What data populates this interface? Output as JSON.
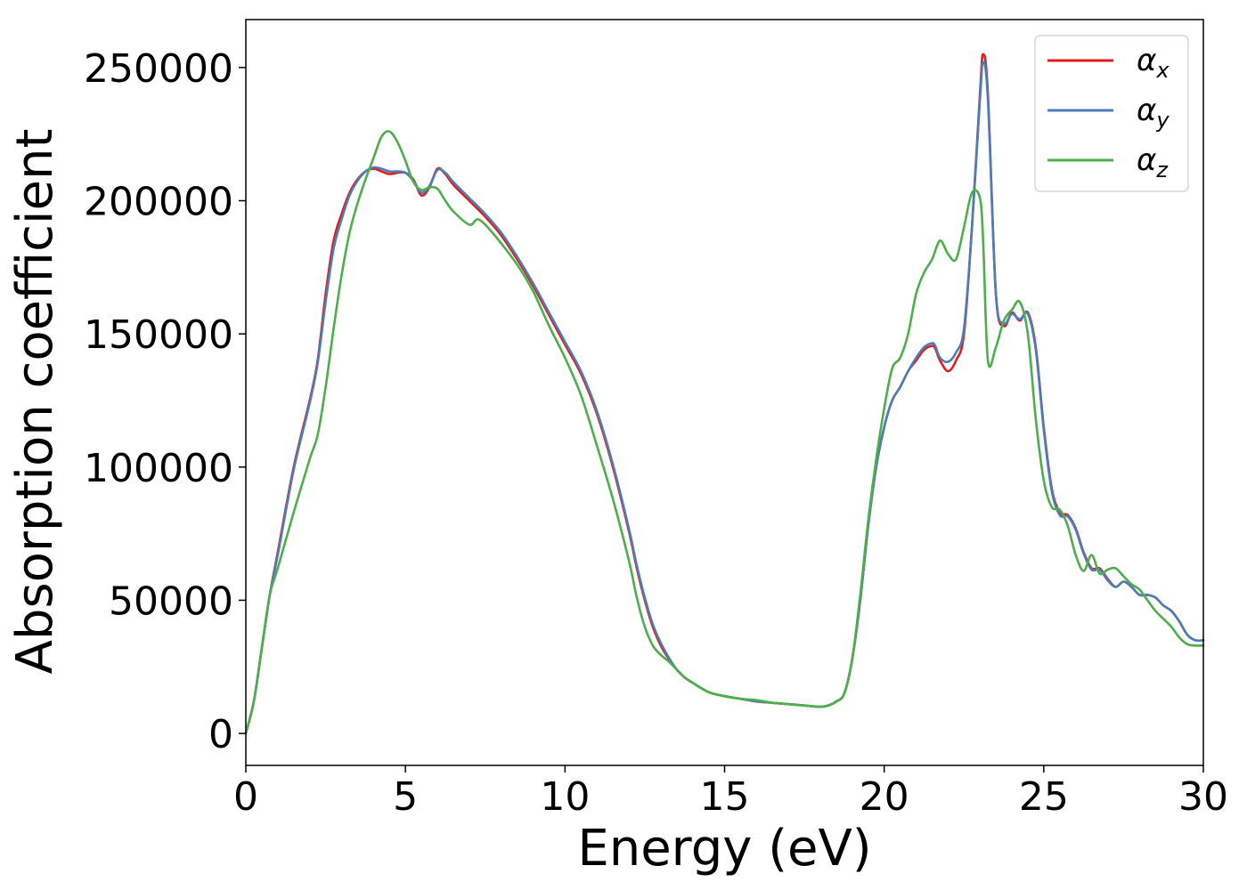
{
  "chart_data": {
    "type": "line",
    "title": "",
    "xlabel": "Energy (eV)",
    "ylabel": "Absorption coefficient",
    "xlim": [
      0,
      30
    ],
    "ylim": [
      -12000,
      268000
    ],
    "xticks": [
      0,
      5,
      10,
      15,
      20,
      25,
      30
    ],
    "yticks": [
      0,
      50000,
      100000,
      150000,
      200000,
      250000
    ],
    "grid": false,
    "legend_position": "top-right",
    "series": [
      {
        "name": "α",
        "subscript": "x",
        "color": "#e41a1c",
        "x": [
          0,
          0.25,
          0.5,
          0.75,
          1.0,
          1.5,
          2.0,
          2.25,
          2.5,
          2.75,
          3.0,
          3.25,
          3.5,
          3.75,
          4.0,
          4.25,
          4.5,
          4.75,
          5.0,
          5.25,
          5.5,
          5.75,
          6.0,
          6.25,
          6.5,
          7.0,
          7.5,
          8.0,
          8.5,
          9.0,
          9.5,
          10.0,
          10.5,
          11.0,
          11.5,
          12.0,
          12.25,
          12.5,
          12.75,
          13.0,
          13.25,
          13.5,
          13.75,
          14.0,
          14.5,
          15.0,
          15.5,
          16.0,
          16.5,
          17.0,
          17.5,
          18.0,
          18.25,
          18.5,
          18.75,
          19.0,
          19.25,
          19.5,
          19.75,
          20.0,
          20.25,
          20.5,
          20.75,
          21.0,
          21.25,
          21.5,
          21.6,
          21.75,
          22.0,
          22.25,
          22.5,
          22.75,
          23.0,
          23.1,
          23.25,
          23.5,
          23.75,
          24.0,
          24.25,
          24.5,
          24.75,
          25.0,
          25.25,
          25.5,
          25.75,
          26.0,
          26.25,
          26.5,
          26.75,
          27.0,
          27.25,
          27.5,
          27.75,
          28.0,
          28.25,
          28.5,
          28.75,
          29.0,
          29.25,
          29.5,
          29.75,
          30.0
        ],
        "y": [
          0,
          12000,
          32000,
          52000,
          68000,
          100000,
          125000,
          140000,
          165000,
          185000,
          195000,
          203000,
          208000,
          211000,
          212000,
          211000,
          210000,
          210500,
          210500,
          208000,
          202000,
          205000,
          212000,
          210000,
          206000,
          200000,
          194000,
          187000,
          178000,
          168000,
          157000,
          146000,
          135000,
          120000,
          100000,
          76000,
          62000,
          50000,
          40000,
          33000,
          28000,
          24000,
          21000,
          19000,
          15500,
          14000,
          13000,
          12000,
          11500,
          11000,
          10500,
          10000,
          10500,
          12000,
          15000,
          28000,
          50000,
          78000,
          100000,
          115000,
          125000,
          130000,
          136000,
          140000,
          144000,
          145500,
          144500,
          140000,
          136000,
          140000,
          150000,
          190000,
          240000,
          255000,
          240000,
          165000,
          153000,
          158000,
          155000,
          158000,
          145000,
          115000,
          92000,
          83000,
          82000,
          77000,
          68000,
          62000,
          62000,
          58000,
          55000,
          57000,
          55000,
          52000,
          52000,
          51000,
          48000,
          46000,
          42000,
          37000,
          35000,
          35000
        ]
      },
      {
        "name": "α",
        "subscript": "y",
        "color": "#4a7eb8",
        "x": [
          0,
          0.25,
          0.5,
          0.75,
          1.0,
          1.5,
          2.0,
          2.25,
          2.5,
          2.75,
          3.0,
          3.25,
          3.5,
          3.75,
          4.0,
          4.25,
          4.5,
          4.75,
          5.0,
          5.25,
          5.5,
          5.75,
          6.0,
          6.25,
          6.5,
          7.0,
          7.5,
          8.0,
          8.5,
          9.0,
          9.5,
          10.0,
          10.5,
          11.0,
          11.5,
          12.0,
          12.25,
          12.5,
          12.75,
          13.0,
          13.25,
          13.5,
          13.75,
          14.0,
          14.5,
          15.0,
          15.5,
          16.0,
          16.5,
          17.0,
          17.5,
          18.0,
          18.25,
          18.5,
          18.75,
          19.0,
          19.25,
          19.5,
          19.75,
          20.0,
          20.25,
          20.5,
          20.75,
          21.0,
          21.25,
          21.5,
          21.6,
          21.75,
          22.0,
          22.25,
          22.5,
          22.75,
          23.0,
          23.1,
          23.25,
          23.5,
          23.75,
          24.0,
          24.25,
          24.5,
          24.75,
          25.0,
          25.25,
          25.5,
          25.75,
          26.0,
          26.25,
          26.5,
          26.75,
          27.0,
          27.25,
          27.5,
          27.75,
          28.0,
          28.25,
          28.5,
          28.75,
          29.0,
          29.25,
          29.5,
          29.75,
          30.0
        ],
        "y": [
          0,
          12000,
          32000,
          52000,
          67000,
          99000,
          124000,
          139000,
          162000,
          182000,
          193000,
          202000,
          207500,
          211000,
          212500,
          212000,
          211000,
          211000,
          210500,
          207500,
          203000,
          205500,
          211500,
          210500,
          207000,
          201000,
          195000,
          188000,
          179000,
          169000,
          158000,
          147000,
          136000,
          121000,
          101000,
          77000,
          63000,
          51000,
          41000,
          34000,
          28500,
          24000,
          21000,
          19000,
          15500,
          14000,
          13000,
          12000,
          11500,
          11000,
          10500,
          10000,
          10500,
          12000,
          15000,
          28000,
          50000,
          78000,
          100000,
          115000,
          125000,
          130000,
          136000,
          141000,
          145000,
          146500,
          145500,
          141000,
          139500,
          143000,
          152000,
          190000,
          238000,
          252000,
          238000,
          165000,
          154000,
          157500,
          155500,
          157500,
          144000,
          114000,
          91000,
          82000,
          81500,
          76500,
          67500,
          61500,
          61500,
          57500,
          55000,
          57000,
          55000,
          52000,
          52000,
          51000,
          48000,
          46000,
          42000,
          37000,
          35000,
          35000
        ]
      },
      {
        "name": "α",
        "subscript": "z",
        "color": "#4daf4a",
        "x": [
          0,
          0.25,
          0.5,
          0.75,
          1.0,
          1.5,
          2.0,
          2.25,
          2.5,
          2.75,
          3.0,
          3.25,
          3.5,
          3.75,
          4.0,
          4.25,
          4.5,
          4.75,
          5.0,
          5.25,
          5.5,
          5.75,
          6.0,
          6.25,
          6.5,
          7.0,
          7.25,
          7.5,
          8.0,
          8.5,
          9.0,
          9.5,
          10.0,
          10.5,
          11.0,
          11.5,
          12.0,
          12.25,
          12.5,
          12.75,
          13.0,
          13.25,
          13.5,
          13.75,
          14.0,
          14.5,
          15.0,
          15.5,
          16.0,
          16.5,
          17.0,
          17.5,
          18.0,
          18.25,
          18.5,
          18.75,
          19.0,
          19.25,
          19.5,
          19.75,
          20.0,
          20.25,
          20.5,
          20.75,
          21.0,
          21.25,
          21.5,
          21.75,
          22.0,
          22.25,
          22.5,
          22.75,
          23.0,
          23.1,
          23.25,
          23.5,
          23.75,
          24.0,
          24.25,
          24.5,
          24.75,
          25.0,
          25.25,
          25.5,
          25.75,
          26.0,
          26.25,
          26.5,
          26.75,
          27.0,
          27.25,
          27.5,
          27.75,
          28.0,
          28.25,
          28.5,
          28.75,
          29.0,
          29.25,
          29.5,
          29.75,
          30.0
        ],
        "y": [
          0,
          12000,
          32000,
          52000,
          62000,
          83000,
          103000,
          112000,
          130000,
          152000,
          172000,
          188000,
          199000,
          208000,
          216000,
          224000,
          226000,
          222000,
          215000,
          207000,
          204000,
          205000,
          204500,
          200000,
          196000,
          191000,
          193000,
          191000,
          184000,
          176000,
          166000,
          153000,
          141000,
          127000,
          108000,
          88000,
          65000,
          51000,
          40000,
          33000,
          29500,
          27000,
          24000,
          21000,
          19000,
          15500,
          14000,
          13000,
          12500,
          11500,
          11000,
          10500,
          10000,
          10500,
          12000,
          15000,
          28000,
          52000,
          80000,
          103000,
          122000,
          137000,
          141000,
          150000,
          165000,
          173000,
          178000,
          185000,
          180000,
          178000,
          190000,
          203000,
          201000,
          185000,
          140000,
          145000,
          155000,
          159000,
          162000,
          150000,
          118000,
          95000,
          85000,
          84000,
          78000,
          67000,
          61000,
          67000,
          60000,
          61500,
          62000,
          59000,
          56000,
          54000,
          50000,
          46000,
          43000,
          40000,
          36000,
          33500,
          33000,
          33000
        ]
      }
    ]
  }
}
